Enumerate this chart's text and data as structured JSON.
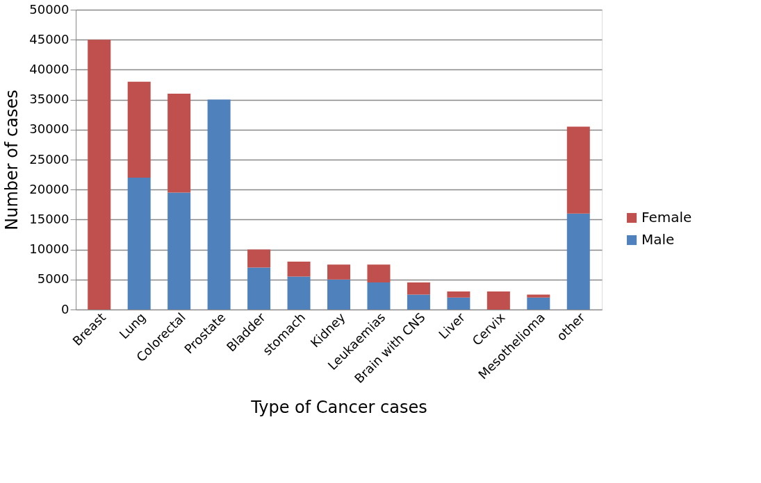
{
  "chart_data": {
    "type": "bar",
    "stacked": true,
    "xlabel": "Type of Cancer cases",
    "ylabel": "Number of cases",
    "categories": [
      "Breast",
      "Lung",
      "Colorectal",
      "Prostate",
      "Bladder",
      "stomach",
      "Kidney",
      "Leukaemias",
      "Brain with CNS",
      "Liver",
      "Cervix",
      "Mesothelioma",
      "other"
    ],
    "series": [
      {
        "name": "Male",
        "color": "#4f81bd",
        "values": [
          0,
          22000,
          19500,
          35000,
          7000,
          5500,
          5000,
          4500,
          2500,
          2000,
          0,
          2000,
          16000
        ]
      },
      {
        "name": "Female",
        "color": "#c0504d",
        "values": [
          45000,
          16000,
          16500,
          0,
          3000,
          2500,
          2500,
          3000,
          2000,
          1000,
          3000,
          500,
          14500
        ]
      }
    ],
    "ylim": [
      0,
      50000
    ],
    "yticks": [
      0,
      5000,
      10000,
      15000,
      20000,
      25000,
      30000,
      35000,
      40000,
      45000,
      50000
    ],
    "grid": "y",
    "legend": "right"
  }
}
